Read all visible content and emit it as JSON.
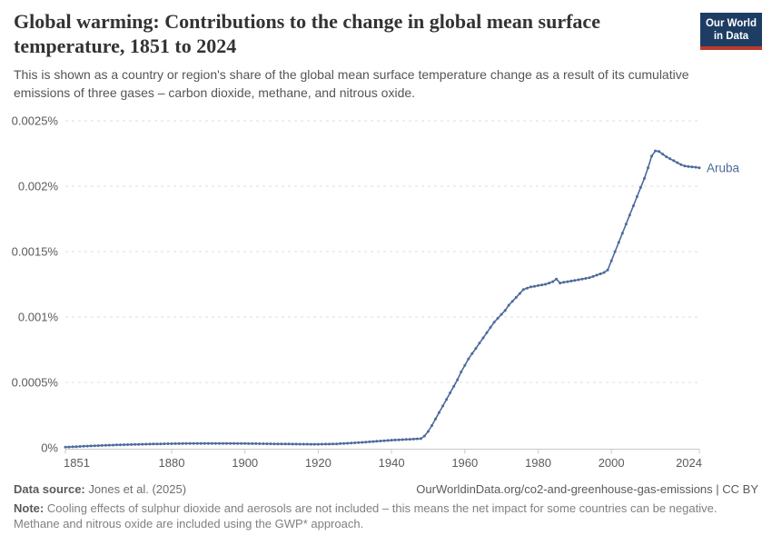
{
  "header": {
    "title": "Global warming: Contributions to the change in global mean surface temperature, 1851 to 2024",
    "subtitle": "This is shown as a country or region's share of the global mean surface temperature change as a result of its cumulative emissions of three gases – carbon dioxide, methane, and nitrous oxide.",
    "logo": {
      "line1": "Our World",
      "line2": "in Data",
      "bg_color": "#1d3d63",
      "bar_color": "#c0392b"
    }
  },
  "footer": {
    "source_label": "Data source:",
    "source_value": "Jones et al. (2025)",
    "attribution": "OurWorldinData.org/co2-and-greenhouse-gas-emissions | CC BY",
    "note_label": "Note:",
    "note_text": "Cooling effects of sulphur dioxide and aerosols are not included – this means the net impact for some countries can be negative. Methane and nitrous oxide are included using the GWP* approach."
  },
  "chart_data": {
    "type": "line",
    "title": "Global warming: Contributions to the change in global mean surface temperature, 1851 to 2024",
    "xlabel": "",
    "ylabel": "",
    "unit": "%",
    "xlim": [
      1851,
      2024
    ],
    "ylim": [
      0,
      0.0025
    ],
    "grid": "dashed-horizontal",
    "x_ticks": [
      1851,
      1880,
      1900,
      1920,
      1940,
      1960,
      1980,
      2000,
      2024
    ],
    "y_ticks": [
      {
        "value": 0,
        "label": "0%"
      },
      {
        "value": 0.0005,
        "label": "0.0005%"
      },
      {
        "value": 0.001,
        "label": "0.001%"
      },
      {
        "value": 0.0015,
        "label": "0.0015%"
      },
      {
        "value": 0.002,
        "label": "0.002%"
      },
      {
        "value": 0.0025,
        "label": "0.0025%"
      }
    ],
    "series": [
      {
        "name": "Aruba",
        "color": "#4C6A9C",
        "marker": "circle",
        "year_start": 1851,
        "year_end": 2024,
        "values": [
          5e-06,
          6.4e-06,
          7.8e-06,
          9.2e-06,
          1.05e-05,
          1.18e-05,
          1.31e-05,
          1.44e-05,
          1.57e-05,
          1.7e-05,
          1.8e-05,
          1.9e-05,
          2e-05,
          2.1e-05,
          2.2e-05,
          2.28e-05,
          2.36e-05,
          2.44e-05,
          2.52e-05,
          2.6e-05,
          2.66e-05,
          2.72e-05,
          2.78e-05,
          2.84e-05,
          2.9e-05,
          2.95e-05,
          3e-05,
          3.05e-05,
          3.1e-05,
          3.15e-05,
          3.18e-05,
          3.21e-05,
          3.24e-05,
          3.27e-05,
          3.3e-05,
          3.31e-05,
          3.32e-05,
          3.33e-05,
          3.34e-05,
          3.35e-05,
          3.35e-05,
          3.34e-05,
          3.34e-05,
          3.33e-05,
          3.33e-05,
          3.31e-05,
          3.3e-05,
          3.28e-05,
          3.27e-05,
          3.25e-05,
          3.22e-05,
          3.19e-05,
          3.16e-05,
          3.13e-05,
          3.1e-05,
          3.07e-05,
          3.04e-05,
          3.01e-05,
          2.98e-05,
          2.95e-05,
          2.92e-05,
          2.89e-05,
          2.86e-05,
          2.83e-05,
          2.8e-05,
          2.78e-05,
          2.76e-05,
          2.74e-05,
          2.72e-05,
          2.7e-05,
          2.76e-05,
          2.82e-05,
          2.88e-05,
          2.94e-05,
          3e-05,
          3.16e-05,
          3.32e-05,
          3.48e-05,
          3.64e-05,
          3.8e-05,
          4e-05,
          4.2e-05,
          4.4e-05,
          4.6e-05,
          4.8e-05,
          5e-05,
          5.2e-05,
          5.4e-05,
          5.6e-05,
          5.8e-05,
          5.95e-05,
          6.1e-05,
          6.25e-05,
          6.4e-05,
          6.55e-05,
          6.7e-05,
          6.85e-05,
          7e-05,
          9e-05,
          0.000125,
          0.00017,
          0.00022,
          0.00027,
          0.00032,
          0.00037,
          0.00042,
          0.00047,
          0.00052,
          0.00058,
          0.00063,
          0.00068,
          0.00072,
          0.00076,
          0.0008,
          0.00084,
          0.00088,
          0.00092,
          0.00096,
          0.00099,
          0.00102,
          0.00105,
          0.00109,
          0.00112,
          0.00115,
          0.00118,
          0.00121,
          0.00122,
          0.00123,
          0.001235,
          0.00124,
          0.001245,
          0.00125,
          0.00126,
          0.00127,
          0.00129,
          0.00126,
          0.001265,
          0.00127,
          0.001275,
          0.00128,
          0.001285,
          0.00129,
          0.001295,
          0.0013,
          0.00131,
          0.00132,
          0.00133,
          0.00134,
          0.00136,
          0.00143,
          0.0015,
          0.00157,
          0.00164,
          0.00171,
          0.00178,
          0.00185,
          0.00192,
          0.00199,
          0.00206,
          0.00214,
          0.00223,
          0.00227,
          0.002265,
          0.002245,
          0.002225,
          0.00221,
          0.002195,
          0.00218,
          0.002165,
          0.002155,
          0.00215,
          0.002148,
          0.002145,
          0.00214
        ]
      }
    ],
    "legend_position": "end-of-line-label"
  },
  "colors": {
    "series_blue": "#4C6A9C",
    "gridline": "#dcdcdc",
    "axis": "#c9c9c9",
    "tick_label": "#5b5b5b"
  }
}
